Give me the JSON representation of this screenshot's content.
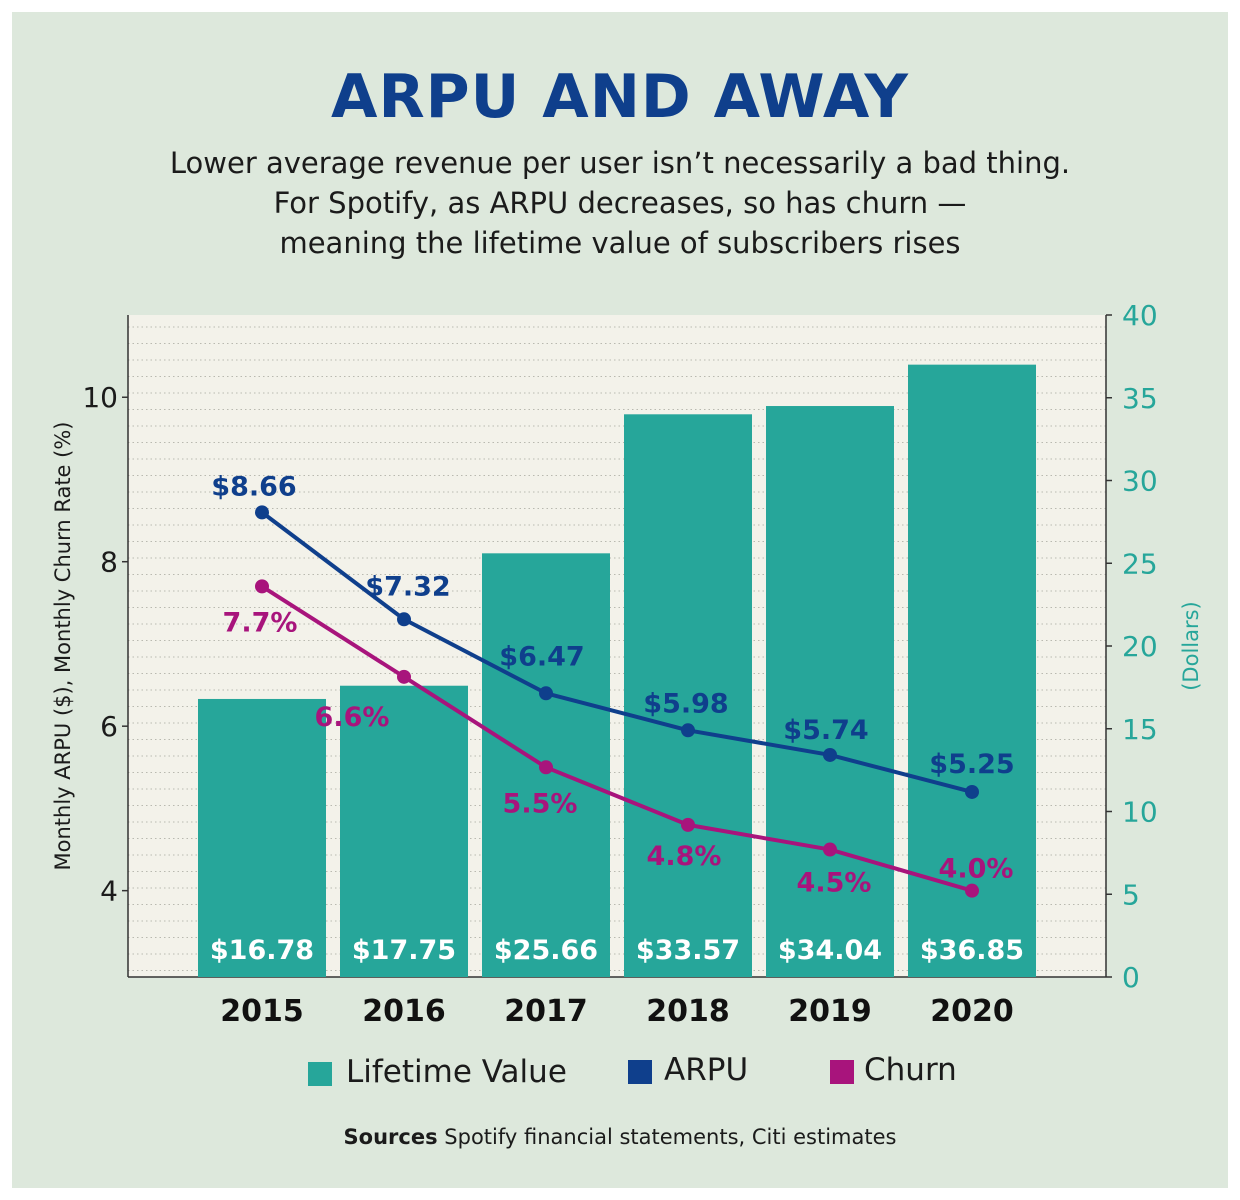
{
  "title": "ARPU AND AWAY",
  "subtitle_lines": [
    "Lower average revenue per user isn’t necessarily a bad thing.",
    "For Spotify, as ARPU decreases, so has churn —",
    "meaning the lifetime value of subscribers rises"
  ],
  "source": {
    "label": "Sources",
    "text": "Spotify financial statements, Citi estimates"
  },
  "colors": {
    "lifetime_value": "#26a69a",
    "arpu": "#0f3f8c",
    "churn": "#a8147c",
    "background": "#dde8dc",
    "plot_background": "#f3f2ea",
    "title": "#0f3f8c"
  },
  "chart_data": {
    "type": "bar",
    "categories": [
      "2015",
      "2016",
      "2017",
      "2018",
      "2019",
      "2020"
    ],
    "series": [
      {
        "name": "Lifetime Value",
        "type": "bar",
        "axis": "right",
        "values": [
          16.78,
          17.75,
          25.66,
          33.57,
          34.04,
          36.85
        ],
        "labels": [
          "$16.78",
          "$17.75",
          "$25.66",
          "$33.57",
          "$34.04",
          "$36.85"
        ],
        "plotted_values": [
          16.8,
          17.6,
          25.6,
          34.0,
          34.5,
          37.0
        ]
      },
      {
        "name": "ARPU",
        "type": "line",
        "axis": "left",
        "values": [
          8.66,
          7.32,
          6.47,
          5.98,
          5.74,
          5.25
        ],
        "labels": [
          "$8.66",
          "$7.32",
          "$6.47",
          "$5.98",
          "$5.74",
          "$5.25"
        ],
        "plotted_values": [
          8.6,
          7.3,
          6.4,
          5.95,
          5.65,
          5.2
        ]
      },
      {
        "name": "Churn",
        "type": "line",
        "axis": "left",
        "values": [
          7.7,
          6.6,
          5.5,
          4.8,
          4.5,
          4.0
        ],
        "labels": [
          "7.7%",
          "6.6%",
          "5.5%",
          "4.8%",
          "4.5%",
          "4.0%"
        ]
      }
    ],
    "y_left": {
      "label": "Monthly ARPU ($), Monthly Churn Rate (%)",
      "range": [
        2.95,
        11.0
      ],
      "ticks": [
        4,
        6,
        8,
        10
      ]
    },
    "y_right": {
      "label": "(Dollars)",
      "range": [
        0,
        40
      ],
      "ticks": [
        0,
        5,
        10,
        15,
        20,
        25,
        30,
        35,
        40
      ]
    },
    "legend": {
      "position": "bottom",
      "items": [
        "Lifetime Value",
        "ARPU",
        "Churn"
      ]
    },
    "grid": "horizontal dotted"
  }
}
